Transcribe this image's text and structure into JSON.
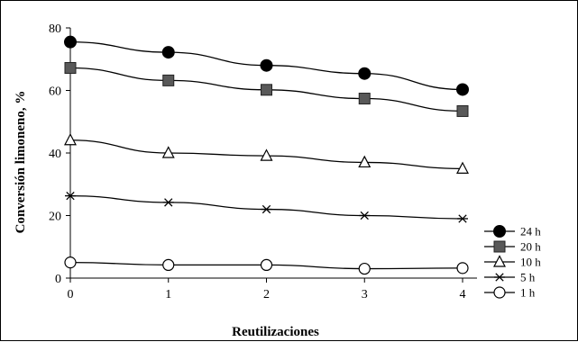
{
  "chart_data": {
    "type": "line",
    "title": "",
    "xlabel": "Reutilizaciones",
    "ylabel": "Conversión limoneno, %",
    "x": [
      0,
      1,
      2,
      3,
      4
    ],
    "xlim": [
      0,
      4
    ],
    "ylim": [
      0,
      80
    ],
    "yticks": [
      0,
      20,
      40,
      60,
      80
    ],
    "xticks": [
      0,
      1,
      2,
      3,
      4
    ],
    "grid": false,
    "legend_position": "right",
    "series": [
      {
        "name": "24 h",
        "marker": "filled-circle",
        "color": "#000000",
        "values": [
          75.5,
          72.2,
          68.0,
          65.4,
          60.3
        ]
      },
      {
        "name": "20 h",
        "marker": "filled-square",
        "color": "#595959",
        "values": [
          67.2,
          63.2,
          60.2,
          57.4,
          53.4
        ]
      },
      {
        "name": "10 h",
        "marker": "open-triangle",
        "color": "#000000",
        "values": [
          44.1,
          40.0,
          39.1,
          37.0,
          35.0
        ]
      },
      {
        "name": "5 h",
        "marker": "star",
        "color": "#000000",
        "values": [
          26.3,
          24.2,
          22.0,
          20.0,
          19.0
        ]
      },
      {
        "name": "1 h",
        "marker": "open-circle",
        "color": "#000000",
        "values": [
          5.0,
          4.2,
          4.2,
          3.0,
          3.2
        ]
      }
    ]
  }
}
